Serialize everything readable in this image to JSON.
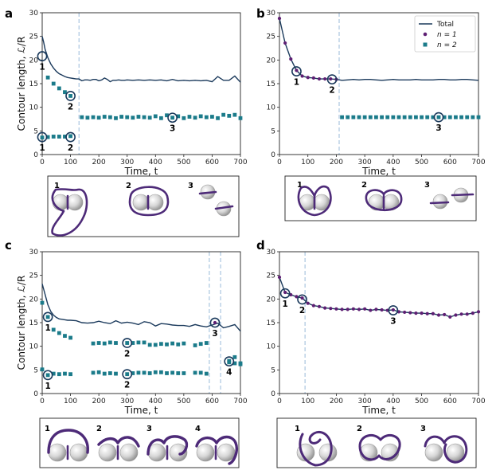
{
  "colors": {
    "total": "#1b3a5c",
    "n1": "#5e1f73",
    "n2": "#1b7b8a",
    "vline": "#aac6e0",
    "sphere": "#d4d4d4",
    "filament": "#4d2a78"
  },
  "chart_data": [
    {
      "panel": "a",
      "type": "line",
      "xlabel": "Time, t",
      "ylabel": "Contour length, ℒ/R",
      "xlim": [
        0,
        700
      ],
      "ylim": [
        0,
        30
      ],
      "xticks": [
        "0",
        "100",
        "200",
        "300",
        "400",
        "500",
        "600",
        "700"
      ],
      "yticks": [
        "0",
        "5",
        "10",
        "15",
        "20",
        "25",
        "30"
      ],
      "dividers": [
        130
      ],
      "series": [
        {
          "name": "Total",
          "kind": "line",
          "color": "#1b3a5c",
          "x": [
            0,
            5,
            10,
            20,
            30,
            40,
            50,
            60,
            70,
            80,
            90,
            100,
            110,
            120,
            130,
            140,
            150,
            160,
            170,
            180,
            190,
            200,
            210,
            220,
            230,
            240,
            250,
            260,
            270,
            280,
            290,
            300,
            320,
            340,
            360,
            380,
            400,
            420,
            440,
            460,
            480,
            500,
            520,
            540,
            560,
            580,
            600,
            620,
            640,
            660,
            680,
            700
          ],
          "y": [
            25,
            23.8,
            22.3,
            20.5,
            19.2,
            18.3,
            17.6,
            17.1,
            16.8,
            16.5,
            16.3,
            16.2,
            16.1,
            16.0,
            16.0,
            15.6,
            15.8,
            15.8,
            15.7,
            15.9,
            15.9,
            15.6,
            15.8,
            16.2,
            15.9,
            15.4,
            15.7,
            15.7,
            15.8,
            15.7,
            15.7,
            15.8,
            15.7,
            15.8,
            15.7,
            15.8,
            15.7,
            15.8,
            15.6,
            15.9,
            15.6,
            15.7,
            15.6,
            15.7,
            15.6,
            15.7,
            15.4,
            16.5,
            15.7,
            15.7,
            16.6,
            15.3
          ]
        },
        {
          "name": "n = 2 (upper)",
          "kind": "square",
          "color": "#1b7b8a",
          "x": [
            20,
            40,
            60,
            80,
            100,
            140,
            160,
            180,
            200,
            220,
            240,
            260,
            280,
            300,
            320,
            340,
            360,
            380,
            400,
            420,
            440,
            460,
            480,
            500,
            520,
            540,
            560,
            580,
            600,
            620,
            640,
            660,
            680,
            700
          ],
          "y": [
            16.3,
            15.0,
            14.0,
            13.2,
            12.4,
            7.9,
            7.8,
            7.9,
            7.8,
            8.0,
            7.9,
            7.7,
            8.0,
            7.9,
            7.8,
            8.0,
            7.9,
            7.8,
            8.1,
            7.7,
            8.3,
            7.8,
            8.1,
            7.7,
            8.0,
            7.8,
            8.1,
            7.9,
            8.0,
            7.7,
            8.4,
            8.2,
            8.4,
            7.7
          ]
        },
        {
          "name": "n = 2 (lower)",
          "kind": "square",
          "color": "#1b7b8a",
          "x": [
            0,
            20,
            40,
            60,
            80,
            100
          ],
          "y": [
            3.6,
            3.7,
            3.8,
            3.8,
            3.8,
            3.9
          ]
        }
      ],
      "markers": [
        {
          "label": "1",
          "x": 0,
          "y": 20.8,
          "label_side": "below"
        },
        {
          "label": "2",
          "x": 100,
          "y": 12.4,
          "label_side": "below"
        },
        {
          "label": "3",
          "x": 460,
          "y": 7.8,
          "label_side": "below"
        },
        {
          "label": "1",
          "x": 0,
          "y": 3.7,
          "label_side": "below"
        },
        {
          "label": "2",
          "x": 100,
          "y": 3.7,
          "label_side": "below"
        }
      ]
    },
    {
      "panel": "b",
      "type": "line",
      "xlabel": "Time, t",
      "ylabel": "",
      "xlim": [
        0,
        700
      ],
      "ylim": [
        0,
        30
      ],
      "xticks": [
        "0",
        "100",
        "200",
        "300",
        "400",
        "500",
        "600",
        "700"
      ],
      "yticks": [
        "0",
        "5",
        "10",
        "15",
        "20",
        "25",
        "30"
      ],
      "dividers": [
        210
      ],
      "legend": {
        "position": "top-right",
        "entries": [
          "Total",
          "n = 1",
          "n = 2"
        ]
      },
      "series": [
        {
          "name": "Total",
          "kind": "line",
          "color": "#1b3a5c",
          "x": [
            0,
            20,
            40,
            60,
            80,
            100,
            120,
            140,
            160,
            180,
            200,
            220,
            240,
            260,
            280,
            300,
            320,
            340,
            360,
            380,
            400,
            420,
            440,
            460,
            480,
            500,
            520,
            540,
            560,
            580,
            600,
            620,
            640,
            660,
            680,
            700
          ],
          "y": [
            28.8,
            23.6,
            20.2,
            17.8,
            16.6,
            16.3,
            16.2,
            16.0,
            16.0,
            16.0,
            15.9,
            15.7,
            15.8,
            15.9,
            15.8,
            15.9,
            15.9,
            15.8,
            15.7,
            15.8,
            15.9,
            15.8,
            15.8,
            15.8,
            15.9,
            15.8,
            15.8,
            15.8,
            15.9,
            15.9,
            15.8,
            15.8,
            15.9,
            15.9,
            15.8,
            15.7
          ]
        },
        {
          "name": "n = 1",
          "kind": "dot",
          "color": "#5e1f73",
          "x": [
            0,
            20,
            40,
            60,
            80,
            100,
            120,
            140,
            160,
            180,
            200
          ],
          "y": [
            28.8,
            23.6,
            20.2,
            17.8,
            16.6,
            16.3,
            16.2,
            16.0,
            16.0,
            16.0,
            15.9
          ]
        },
        {
          "name": "n = 2",
          "kind": "square",
          "color": "#1b7b8a",
          "x": [
            220,
            240,
            260,
            280,
            300,
            320,
            340,
            360,
            380,
            400,
            420,
            440,
            460,
            480,
            500,
            520,
            540,
            560,
            580,
            600,
            620,
            640,
            660,
            680,
            700
          ],
          "y": [
            7.9,
            7.9,
            7.9,
            7.9,
            7.9,
            7.9,
            7.9,
            7.9,
            7.9,
            7.9,
            7.9,
            7.9,
            7.9,
            7.9,
            7.9,
            7.9,
            7.9,
            7.9,
            7.9,
            7.9,
            7.9,
            7.9,
            7.9,
            7.9,
            7.9
          ]
        }
      ],
      "markers": [
        {
          "label": "1",
          "x": 60,
          "y": 17.6,
          "label_side": "below"
        },
        {
          "label": "2",
          "x": 185,
          "y": 15.9,
          "label_side": "below"
        },
        {
          "label": "3",
          "x": 560,
          "y": 7.9,
          "label_side": "below"
        }
      ]
    },
    {
      "panel": "c",
      "type": "line",
      "xlabel": "Time, t",
      "ylabel": "Contour length, ℒ/R",
      "xlim": [
        0,
        700
      ],
      "ylim": [
        0,
        30
      ],
      "xticks": [
        "0",
        "100",
        "200",
        "300",
        "400",
        "500",
        "600",
        "700"
      ],
      "yticks": [
        "0",
        "5",
        "10",
        "15",
        "20",
        "25",
        "30"
      ],
      "dividers": [
        590,
        630
      ],
      "series": [
        {
          "name": "Total",
          "kind": "line",
          "color": "#1b3a5c",
          "x": [
            0,
            10,
            20,
            30,
            40,
            50,
            60,
            70,
            80,
            90,
            100,
            120,
            140,
            160,
            180,
            200,
            220,
            240,
            260,
            280,
            300,
            320,
            340,
            360,
            380,
            400,
            420,
            440,
            460,
            480,
            500,
            520,
            540,
            560,
            580,
            600,
            620,
            640,
            660,
            680,
            700
          ],
          "y": [
            23.2,
            21.0,
            18.8,
            17.4,
            16.6,
            16.1,
            15.8,
            15.7,
            15.6,
            15.5,
            15.5,
            15.4,
            15.0,
            14.9,
            15.0,
            15.3,
            15.0,
            14.8,
            15.4,
            14.9,
            15.1,
            14.9,
            14.6,
            15.2,
            15.0,
            14.3,
            14.8,
            14.7,
            14.5,
            14.4,
            14.4,
            14.2,
            14.6,
            14.3,
            14.1,
            14.5,
            14.9,
            13.9,
            14.2,
            14.6,
            13.2
          ]
        },
        {
          "name": "n = 2 (upper)",
          "kind": "square",
          "color": "#1b7b8a",
          "x": [
            0,
            20,
            40,
            60,
            80,
            100,
            180,
            200,
            220,
            240,
            260,
            300,
            320,
            340,
            360,
            380,
            400,
            420,
            440,
            460,
            480,
            500,
            540,
            560,
            580,
            660,
            680,
            700
          ],
          "y": [
            19.2,
            16.2,
            13.5,
            12.8,
            12.2,
            11.8,
            10.6,
            10.7,
            10.6,
            10.8,
            10.7,
            10.7,
            10.7,
            10.8,
            10.8,
            10.3,
            10.3,
            10.5,
            10.4,
            10.6,
            10.4,
            10.6,
            10.2,
            10.5,
            10.7,
            6.9,
            7.7,
            6.4
          ]
        },
        {
          "name": "n = 2 (lower)",
          "kind": "square",
          "color": "#1b7b8a",
          "x": [
            0,
            20,
            40,
            60,
            80,
            100,
            180,
            200,
            220,
            240,
            260,
            300,
            320,
            340,
            360,
            380,
            400,
            420,
            440,
            460,
            480,
            500,
            540,
            560,
            580,
            660,
            680,
            700
          ],
          "y": [
            5.1,
            3.9,
            4.2,
            4.1,
            4.2,
            4.1,
            4.4,
            4.5,
            4.2,
            4.3,
            4.2,
            4.1,
            4.3,
            4.4,
            4.4,
            4.3,
            4.5,
            4.5,
            4.3,
            4.4,
            4.3,
            4.3,
            4.4,
            4.4,
            4.2,
            6.6,
            6.4,
            6.2
          ]
        },
        {
          "name": "n = 1",
          "kind": "dot",
          "color": "#5e1f73",
          "x": [
            610
          ],
          "y": [
            15.0
          ]
        }
      ],
      "markers": [
        {
          "label": "1",
          "x": 20,
          "y": 16.2,
          "label_side": "below"
        },
        {
          "label": "2",
          "x": 300,
          "y": 10.7,
          "label_side": "below"
        },
        {
          "label": "3",
          "x": 610,
          "y": 15.0,
          "label_side": "below"
        },
        {
          "label": "4",
          "x": 660,
          "y": 6.8,
          "label_side": "below"
        },
        {
          "label": "1",
          "x": 20,
          "y": 3.9,
          "label_side": "below"
        },
        {
          "label": "2",
          "x": 300,
          "y": 4.1,
          "label_side": "below"
        }
      ]
    },
    {
      "panel": "d",
      "type": "line",
      "xlabel": "Time, t",
      "ylabel": "",
      "xlim": [
        0,
        700
      ],
      "ylim": [
        0,
        30
      ],
      "xticks": [
        "0",
        "100",
        "200",
        "300",
        "400",
        "500",
        "600",
        "700"
      ],
      "yticks": [
        "0",
        "5",
        "10",
        "15",
        "20",
        "25",
        "30"
      ],
      "dividers": [
        90
      ],
      "series": [
        {
          "name": "Total",
          "kind": "line",
          "color": "#1b3a5c",
          "x": [
            0,
            20,
            40,
            60,
            80,
            100,
            120,
            140,
            160,
            180,
            200,
            220,
            240,
            260,
            280,
            300,
            320,
            340,
            360,
            380,
            400,
            420,
            440,
            460,
            480,
            500,
            520,
            540,
            560,
            580,
            600,
            620,
            640,
            660,
            680,
            700
          ],
          "y": [
            24.6,
            21.4,
            20.9,
            20.5,
            20.2,
            19.1,
            18.6,
            18.4,
            18.1,
            18.0,
            17.9,
            17.8,
            17.8,
            17.9,
            17.8,
            17.9,
            17.6,
            17.8,
            17.7,
            17.6,
            17.7,
            17.3,
            17.2,
            17.1,
            17.0,
            17.0,
            16.9,
            16.9,
            16.6,
            16.7,
            16.2,
            16.6,
            16.8,
            16.8,
            17.0,
            17.3
          ]
        },
        {
          "name": "n = 1",
          "kind": "dot",
          "color": "#5e1f73",
          "x": [
            0,
            20,
            40,
            60,
            80,
            100,
            120,
            140,
            160,
            180,
            200,
            220,
            240,
            260,
            280,
            300,
            320,
            340,
            360,
            380,
            400,
            420,
            440,
            460,
            480,
            500,
            520,
            540,
            560,
            580,
            600,
            620,
            640,
            660,
            680,
            700
          ],
          "y": [
            24.6,
            21.4,
            20.9,
            20.5,
            20.2,
            19.1,
            18.6,
            18.4,
            18.1,
            18.0,
            17.9,
            17.8,
            17.8,
            17.9,
            17.8,
            17.9,
            17.6,
            17.8,
            17.7,
            17.6,
            17.7,
            17.3,
            17.2,
            17.1,
            17.0,
            17.0,
            16.9,
            16.9,
            16.6,
            16.7,
            16.2,
            16.6,
            16.8,
            16.8,
            17.0,
            17.3
          ]
        }
      ],
      "markers": [
        {
          "label": "1",
          "x": 20,
          "y": 21.2,
          "label_side": "below"
        },
        {
          "label": "2",
          "x": 80,
          "y": 19.9,
          "label_side": "below"
        },
        {
          "label": "3",
          "x": 400,
          "y": 17.6,
          "label_side": "below"
        }
      ]
    }
  ],
  "insets": [
    {
      "panel": "a",
      "labels": [
        "1",
        "2",
        "3"
      ]
    },
    {
      "panel": "b",
      "labels": [
        "1",
        "2",
        "3"
      ]
    },
    {
      "panel": "c",
      "labels": [
        "1",
        "2",
        "3",
        "4"
      ]
    },
    {
      "panel": "d",
      "labels": [
        "1",
        "2",
        "3"
      ]
    }
  ]
}
